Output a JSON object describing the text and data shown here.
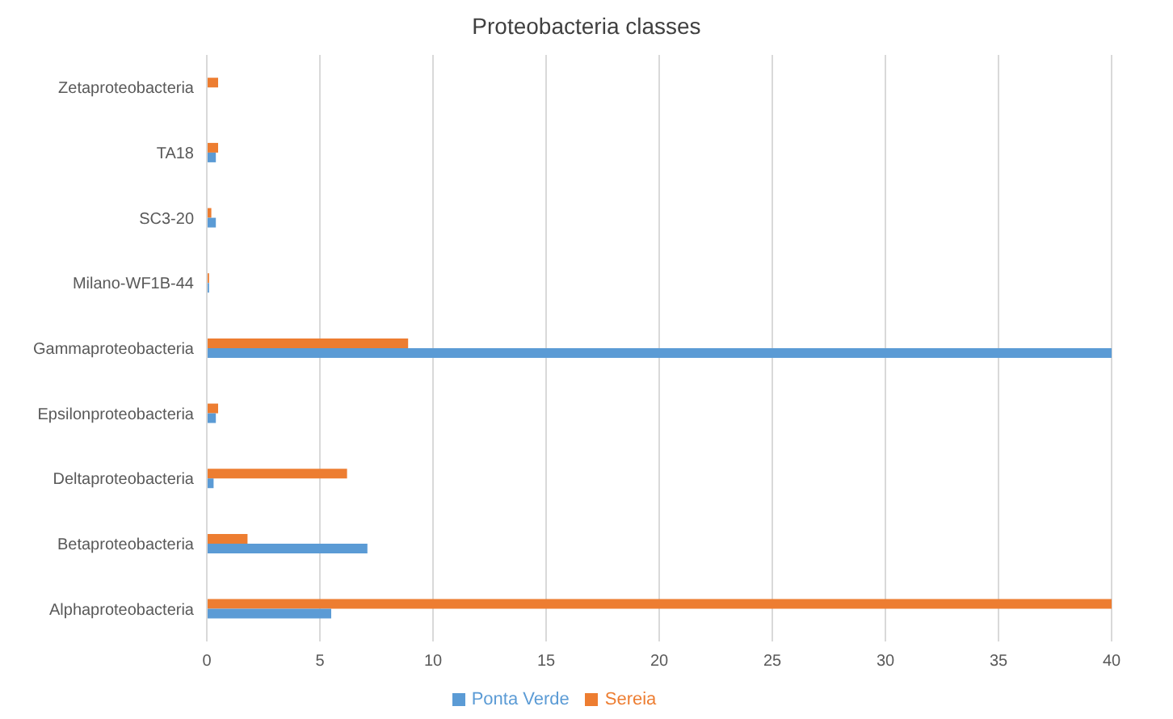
{
  "chart_data": {
    "type": "bar",
    "orientation": "horizontal",
    "title": "Proteobacteria classes",
    "categories": [
      "Zetaproteobacteria",
      "TA18",
      "SC3-20",
      "Milano-WF1B-44",
      "Gammaproteobacteria",
      "Epsilonproteobacteria",
      "Deltaproteobacteria",
      "Betaproteobacteria",
      "Alphaproteobacteria"
    ],
    "series": [
      {
        "name": "Sereia",
        "color": "#ed7d31",
        "values": [
          0.5,
          0.5,
          0.2,
          0.1,
          8.9,
          0.5,
          6.2,
          1.8,
          40
        ]
      },
      {
        "name": "Ponta Verde",
        "color": "#5b9bd5",
        "values": [
          0,
          0.4,
          0.4,
          0.1,
          40,
          0.4,
          0.3,
          7.1,
          5.5
        ]
      }
    ],
    "xlim": [
      0,
      40
    ],
    "xticks": [
      0,
      5,
      10,
      15,
      20,
      25,
      30,
      35,
      40
    ],
    "grid": "x",
    "legend": "bottom"
  }
}
